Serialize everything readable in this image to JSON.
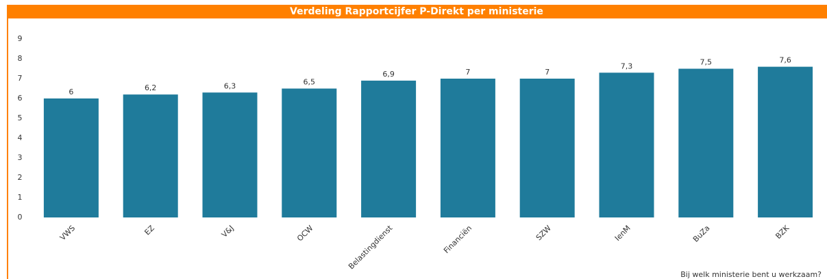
{
  "chart_data": {
    "type": "bar",
    "title": "Verdeling Rapportcijfer P-Direkt per ministerie",
    "x_label": "Bij welk ministerie bent u werkzaam?",
    "categories": [
      "VWS",
      "EZ",
      "V&J",
      "OCW",
      "Belastingdienst",
      "Financiën",
      "SZW",
      "IenM",
      "BuZa",
      "BZK"
    ],
    "values": [
      6,
      6.2,
      6.3,
      6.5,
      6.9,
      7,
      7,
      7.3,
      7.5,
      7.6
    ],
    "value_labels": [
      "6",
      "6,2",
      "6,3",
      "6,5",
      "6,9",
      "7",
      "7",
      "7,3",
      "7,5",
      "7,6"
    ],
    "color": "#1f7b9b",
    "ylim": [
      0,
      9
    ],
    "yticks": [
      0,
      1,
      2,
      3,
      4,
      5,
      6,
      7,
      8,
      9
    ],
    "grid": false
  }
}
